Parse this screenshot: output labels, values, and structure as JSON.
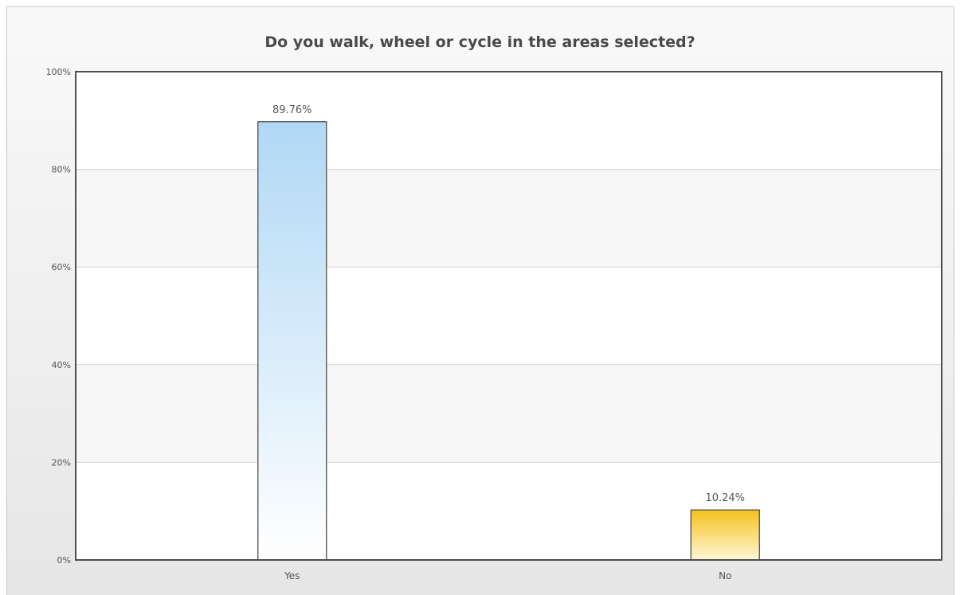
{
  "chart_data": {
    "type": "bar",
    "title": "Do you walk, wheel or cycle in the areas selected?",
    "categories": [
      "Yes",
      "No"
    ],
    "values": [
      89.76,
      10.24
    ],
    "data_labels": [
      "89.76%",
      "10.24%"
    ],
    "yticks": [
      "0%",
      "20%",
      "40%",
      "60%",
      "80%",
      "100%"
    ],
    "ylim": [
      0,
      100
    ],
    "grid": true,
    "colors": {
      "Yes": {
        "top": "#b0d8f5",
        "bottom": "#ffffff"
      },
      "No": {
        "top": "#f5c21b",
        "bottom": "#fff6d9"
      }
    }
  }
}
